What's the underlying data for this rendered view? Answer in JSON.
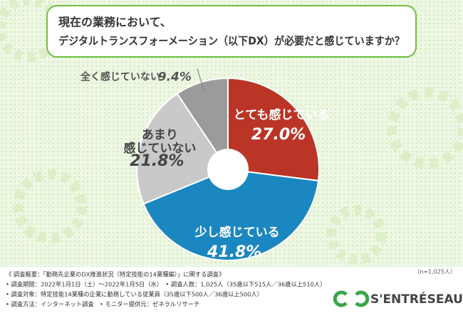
{
  "chart_data": {
    "type": "pie",
    "title_lines": [
      "現在の業務において、",
      "デジタルトランスフォーメーション（以下DX）が必要だと感じていますか？"
    ],
    "categories": [
      "とても感じている",
      "少し感じている",
      "あまり\n感じていない",
      "全く感じていない"
    ],
    "values": [
      27.0,
      41.8,
      21.8,
      9.4
    ],
    "value_labels": [
      "27.0%",
      "41.8%",
      "21.8%",
      "9.4%"
    ],
    "colors": [
      "#bb3526",
      "#1b87c0",
      "#c9c9c9",
      "#9b9b9b"
    ],
    "sample_note": "（n=1,025人）",
    "notes": [
      "《 調査概要：「勤務先企業のDX推進状況（特定技能の14業種編）」に関する調査》",
      "• 調査期間：2022年1月1日（土）～2022年1月5日（水）　• 調査人数：1,025人（35歳以下515人／36歳以上510人）",
      "• 調査対象：特定技能14業種の企業に勤務している従業員（35歳以下500人／36歳以上500人）",
      "• 調査方法：インターネット調査　• モニター提供元：ゼネラルリサーチ"
    ],
    "logo": "S'ENTRÉSEAU"
  }
}
